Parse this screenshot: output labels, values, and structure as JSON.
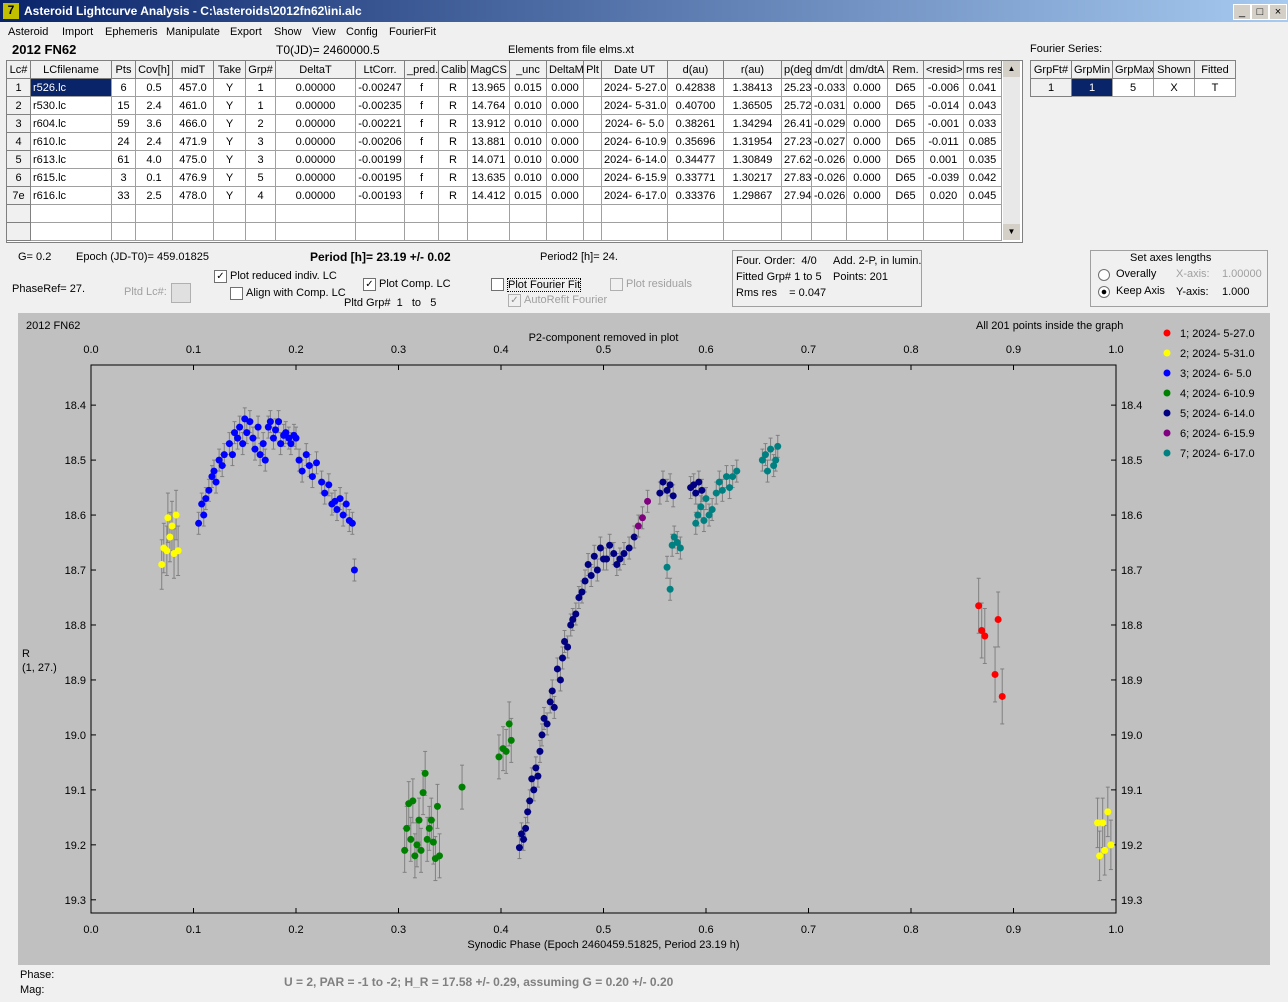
{
  "window": {
    "title": "Asteroid Lightcurve Analysis - C:\\asteroids\\2012fn62\\ini.alc"
  },
  "menu": [
    "Asteroid",
    "Import",
    "Ephemeris",
    "Manipulate",
    "Export",
    "Show",
    "View",
    "Config",
    "FourierFit"
  ],
  "header": {
    "object": "2012 FN62",
    "t0": "T0(JD)= 2460000.5",
    "elements": "Elements from file elms.xt",
    "fourier": "Fourier Series:"
  },
  "table": {
    "columns": [
      "Lc#",
      "LCfilename",
      "Pts",
      "Cov[h]",
      "midT",
      "Take",
      "Grp#",
      "DeltaT",
      "LtCorr.",
      "_pred.",
      "Calib.",
      "MagCS",
      "_unc",
      "DeltaM",
      "Plt",
      "Date UT",
      "d(au)",
      "r(au)",
      "p(deg)",
      "dm/dt",
      "dm/dtA",
      "Rem.",
      "<resid>",
      "rms res"
    ],
    "rows": [
      [
        "1",
        "r526.lc",
        "6",
        "0.5",
        "457.0",
        "Y",
        "1",
        "0.00000",
        "-0.00247",
        "f",
        "R",
        "13.965",
        "0.015",
        "0.000",
        null,
        "2024- 5-27.0",
        "0.42838",
        "1.38413",
        "25.23",
        "-0.033",
        "0.000",
        "D65",
        "-0.006",
        "0.041"
      ],
      [
        "2",
        "r530.lc",
        "15",
        "2.4",
        "461.0",
        "Y",
        "1",
        "0.00000",
        "-0.00235",
        "f",
        "R",
        "14.764",
        "0.010",
        "0.000",
        null,
        "2024- 5-31.0",
        "0.40700",
        "1.36505",
        "25.72",
        "-0.031",
        "0.000",
        "D65",
        "-0.014",
        "0.043"
      ],
      [
        "3",
        "r604.lc",
        "59",
        "3.6",
        "466.0",
        "Y",
        "2",
        "0.00000",
        "-0.00221",
        "f",
        "R",
        "13.912",
        "0.010",
        "0.000",
        null,
        "2024- 6- 5.0",
        "0.38261",
        "1.34294",
        "26.41",
        "-0.029",
        "0.000",
        "D65",
        "-0.001",
        "0.033"
      ],
      [
        "4",
        "r610.lc",
        "24",
        "2.4",
        "471.9",
        "Y",
        "3",
        "0.00000",
        "-0.00206",
        "f",
        "R",
        "13.881",
        "0.010",
        "0.000",
        null,
        "2024- 6-10.9",
        "0.35696",
        "1.31954",
        "27.23",
        "-0.027",
        "0.000",
        "D65",
        "-0.011",
        "0.085"
      ],
      [
        "5",
        "r613.lc",
        "61",
        "4.0",
        "475.0",
        "Y",
        "3",
        "0.00000",
        "-0.00199",
        "f",
        "R",
        "14.071",
        "0.010",
        "0.000",
        null,
        "2024- 6-14.0",
        "0.34477",
        "1.30849",
        "27.62",
        "-0.026",
        "0.000",
        "D65",
        "0.001",
        "0.035"
      ],
      [
        "6",
        "r615.lc",
        "3",
        "0.1",
        "476.9",
        "Y",
        "5",
        "0.00000",
        "-0.00195",
        "f",
        "R",
        "13.635",
        "0.010",
        "0.000",
        null,
        "2024- 6-15.9",
        "0.33771",
        "1.30217",
        "27.83",
        "-0.026",
        "0.000",
        "D65",
        "-0.039",
        "0.042"
      ],
      [
        "7e",
        "r616.lc",
        "33",
        "2.5",
        "478.0",
        "Y",
        "4",
        "0.00000",
        "-0.00193",
        "f",
        "R",
        "14.412",
        "0.015",
        "0.000",
        null,
        "2024- 6-17.0",
        "0.33376",
        "1.29867",
        "27.94",
        "-0.026",
        "0.000",
        "D65",
        "0.020",
        "0.045"
      ]
    ]
  },
  "fourier_table": {
    "columns": [
      "GrpFt#",
      "GrpMin",
      "GrpMax",
      "Shown",
      "Fitted"
    ],
    "rows": [
      [
        "1",
        "1",
        "5",
        "X",
        "T"
      ]
    ]
  },
  "info": {
    "g": "G= 0.2",
    "epoch": "Epoch (JD-T0)= 459.01825",
    "period": "Period [h]= 23.19 +/- 0.02",
    "period2": "Period2 [h]= 24.",
    "phase_ref": "PhaseRef= 27.",
    "pltd_lc": "Pltd Lc#:",
    "pltd_grp": "Pltd Grp#  1   to   5"
  },
  "checkboxes": [
    {
      "label": "Plot reduced indiv. LC",
      "checked": true,
      "enabled": true
    },
    {
      "label": "Align with Comp. LC",
      "checked": false,
      "enabled": true
    },
    {
      "label": "Plot Comp. LC",
      "checked": true,
      "enabled": true
    },
    {
      "label": "Plot Fourier Fit",
      "checked": false,
      "enabled": true
    },
    {
      "label": "Plot residuals",
      "checked": false,
      "enabled": false
    },
    {
      "label": "AutoRefit Fourier",
      "checked": true,
      "enabled": false
    }
  ],
  "fit_box": [
    "Four. Order:  4/0",
    "Add. 2-P, in lumin.",
    "Fitted Grp# 1 to 5",
    "Points: 201",
    "Rms res    = 0.047"
  ],
  "axes_box": {
    "title": "Set axes lengths",
    "radios": [
      {
        "label": "Overally",
        "selected": false
      },
      {
        "label": "Keep Axis",
        "selected": true
      }
    ],
    "x_axis": "X-axis:",
    "x_value": "1.00000",
    "y_axis": "Y-axis:",
    "y_value": "1.000"
  },
  "chart_data": {
    "type": "scatter",
    "title": "2012 FN62",
    "annotation": "All 201 points inside the graph",
    "top_label": "P2-component removed in plot",
    "xlabel": "Synodic Phase (Epoch 2460459.51825, Period 23.19 h)",
    "ylabel": [
      "R",
      "(1, 27.)"
    ],
    "xlim": [
      0,
      1
    ],
    "xticks": [
      {
        "value": 0,
        "label": "0.0"
      },
      0.1,
      0.2,
      0.3,
      0.4,
      0.5,
      0.6,
      0.7,
      0.8,
      0.9,
      {
        "value": 1,
        "label": "1.0"
      }
    ],
    "ylim": [
      18.327,
      19.324
    ],
    "y_inverted": true,
    "yticks": [
      18.4,
      18.5,
      18.6,
      18.7,
      18.8,
      18.9,
      {
        "value": 19,
        "label": "19.0"
      },
      19.1,
      19.2,
      19.3
    ],
    "series": [
      {
        "name": "1; 2024- 5-27.0",
        "color": "#ff0000",
        "error": 0.05,
        "x": [
          0.866,
          0.869,
          0.872,
          0.882,
          0.885,
          0.889
        ],
        "y": [
          18.765,
          18.81,
          18.82,
          18.89,
          18.79,
          18.93
        ]
      },
      {
        "name": "2; 2024- 5-31.0",
        "color": "#ffff00",
        "error": 0.045,
        "x": [
          0.069,
          0.071,
          0.074,
          0.077,
          0.079,
          0.081,
          0.083,
          0.085,
          0.075,
          0.982,
          0.984,
          0.987,
          0.989,
          0.992,
          0.995
        ],
        "y": [
          18.69,
          18.66,
          18.665,
          18.64,
          18.62,
          18.67,
          18.6,
          18.665,
          18.605,
          19.16,
          19.22,
          19.16,
          19.21,
          19.14,
          19.2
        ]
      },
      {
        "name": "3; 2024- 6- 5.0",
        "color": "#0000ff",
        "error": 0.02,
        "x": [
          0.105,
          0.108,
          0.11,
          0.112,
          0.115,
          0.118,
          0.12,
          0.122,
          0.125,
          0.128,
          0.13,
          0.135,
          0.138,
          0.14,
          0.143,
          0.145,
          0.148,
          0.15,
          0.152,
          0.155,
          0.158,
          0.16,
          0.163,
          0.165,
          0.168,
          0.17,
          0.173,
          0.175,
          0.178,
          0.18,
          0.183,
          0.185,
          0.188,
          0.19,
          0.193,
          0.195,
          0.198,
          0.2,
          0.203,
          0.206,
          0.21,
          0.213,
          0.216,
          0.22,
          0.225,
          0.228,
          0.232,
          0.235,
          0.238,
          0.24,
          0.243,
          0.246,
          0.249,
          0.252,
          0.255,
          0.257
        ],
        "y": [
          18.615,
          18.58,
          18.6,
          18.57,
          18.555,
          18.53,
          18.52,
          18.54,
          18.5,
          18.51,
          18.49,
          18.47,
          18.49,
          18.45,
          18.46,
          18.44,
          18.47,
          18.425,
          18.45,
          18.43,
          18.46,
          18.48,
          18.44,
          18.49,
          18.47,
          18.5,
          18.44,
          18.43,
          18.46,
          18.445,
          18.43,
          18.47,
          18.455,
          18.45,
          18.46,
          18.47,
          18.455,
          18.46,
          18.5,
          18.52,
          18.49,
          18.51,
          18.53,
          18.505,
          18.54,
          18.56,
          18.545,
          18.58,
          18.575,
          18.59,
          18.57,
          18.6,
          18.58,
          18.61,
          18.615,
          18.7
        ]
      },
      {
        "name": "4; 2024- 6-10.9",
        "color": "#008000",
        "error": 0.04,
        "x": [
          0.306,
          0.308,
          0.31,
          0.312,
          0.314,
          0.316,
          0.318,
          0.32,
          0.322,
          0.324,
          0.326,
          0.328,
          0.33,
          0.332,
          0.334,
          0.336,
          0.338,
          0.34,
          0.362,
          0.398,
          0.402,
          0.405,
          0.408,
          0.41
        ],
        "y": [
          19.21,
          19.17,
          19.125,
          19.19,
          19.12,
          19.22,
          19.2,
          19.155,
          19.21,
          19.105,
          19.07,
          19.19,
          19.17,
          19.155,
          19.195,
          19.225,
          19.13,
          19.22,
          19.095,
          19.04,
          19.025,
          19.03,
          18.98,
          19.01
        ]
      },
      {
        "name": "5; 2024- 6-14.0",
        "color": "#000080",
        "error": 0.02,
        "x": [
          0.418,
          0.42,
          0.422,
          0.424,
          0.426,
          0.428,
          0.43,
          0.432,
          0.434,
          0.436,
          0.438,
          0.44,
          0.442,
          0.445,
          0.448,
          0.45,
          0.452,
          0.455,
          0.458,
          0.46,
          0.462,
          0.465,
          0.468,
          0.47,
          0.473,
          0.476,
          0.479,
          0.482,
          0.485,
          0.488,
          0.491,
          0.494,
          0.497,
          0.5,
          0.503,
          0.506,
          0.51,
          0.513,
          0.516,
          0.52,
          0.525,
          0.53,
          0.555,
          0.558,
          0.562,
          0.565,
          0.568,
          0.585,
          0.588,
          0.59,
          0.593,
          0.596
        ],
        "y": [
          19.205,
          19.18,
          19.19,
          19.17,
          19.14,
          19.12,
          19.08,
          19.1,
          19.06,
          19.075,
          19.03,
          19.0,
          18.97,
          18.98,
          18.94,
          18.92,
          18.95,
          18.88,
          18.9,
          18.86,
          18.83,
          18.84,
          18.8,
          18.79,
          18.78,
          18.75,
          18.74,
          18.72,
          18.69,
          18.71,
          18.675,
          18.7,
          18.66,
          18.68,
          18.68,
          18.655,
          18.67,
          18.69,
          18.68,
          18.67,
          18.66,
          18.64,
          18.56,
          18.54,
          18.555,
          18.545,
          18.565,
          18.55,
          18.545,
          18.56,
          18.54,
          18.555
        ]
      },
      {
        "name": "6; 2024- 6-15.9",
        "color": "#800080",
        "error": 0.02,
        "x": [
          0.534,
          0.538,
          0.543
        ],
        "y": [
          18.62,
          18.605,
          18.575
        ]
      },
      {
        "name": "7; 2024- 6-17.0",
        "color": "#008080",
        "error": 0.02,
        "x": [
          0.562,
          0.565,
          0.567,
          0.569,
          0.572,
          0.575,
          0.59,
          0.592,
          0.595,
          0.598,
          0.6,
          0.603,
          0.606,
          0.61,
          0.613,
          0.616,
          0.62,
          0.623,
          0.626,
          0.63,
          0.655,
          0.658,
          0.66,
          0.663,
          0.666,
          0.668,
          0.67
        ],
        "y": [
          18.695,
          18.735,
          18.655,
          18.64,
          18.65,
          18.66,
          18.615,
          18.6,
          18.585,
          18.61,
          18.57,
          18.6,
          18.59,
          18.56,
          18.54,
          18.555,
          18.53,
          18.55,
          18.53,
          18.52,
          18.5,
          18.49,
          18.52,
          18.48,
          18.51,
          18.5,
          18.475
        ]
      }
    ]
  },
  "footer": {
    "phase": "Phase:",
    "mag": "Mag:",
    "summary": "U = 2, PAR = -1 to -2; H_R = 17.58 +/- 0.29, assuming G = 0.20 +/- 0.20"
  }
}
